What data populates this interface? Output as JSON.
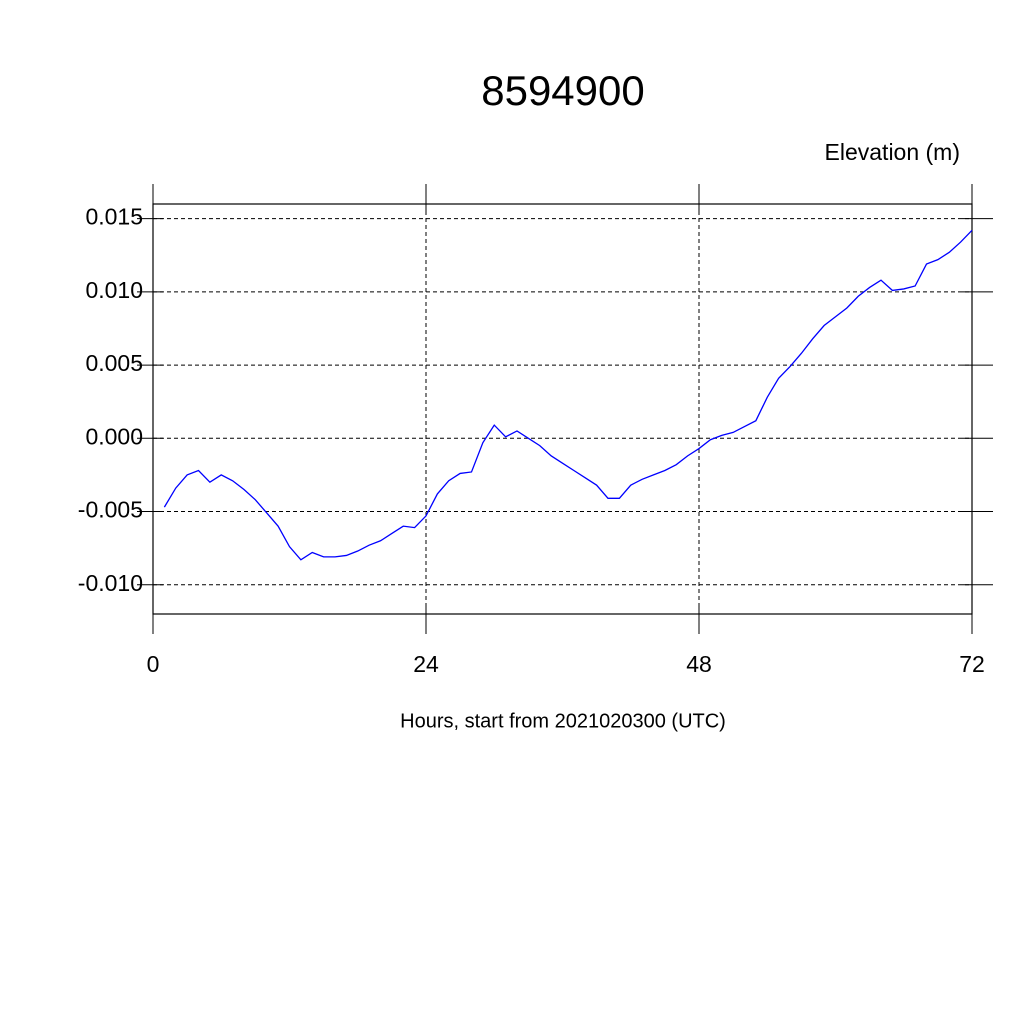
{
  "chart_data": {
    "type": "line",
    "title": "8594900",
    "subtitle": "Elevation (m)",
    "x_label": "Hours, start from 2021020300 (UTC)",
    "x": [
      1,
      2,
      3,
      4,
      5,
      6,
      7,
      8,
      9,
      10,
      11,
      12,
      13,
      14,
      15,
      16,
      17,
      18,
      19,
      20,
      21,
      22,
      23,
      24,
      25,
      26,
      27,
      28,
      29,
      30,
      31,
      32,
      33,
      34,
      35,
      36,
      37,
      38,
      39,
      40,
      41,
      42,
      43,
      44,
      45,
      46,
      47,
      48,
      49,
      50,
      51,
      52,
      53,
      54,
      55,
      56,
      57,
      58,
      59,
      60,
      61,
      62,
      63,
      64,
      65,
      66,
      67,
      68,
      69,
      70,
      71,
      72
    ],
    "series": [
      {
        "color": "#0000ff",
        "values": [
          -0.0047,
          -0.0034,
          -0.0025,
          -0.0022,
          -0.003,
          -0.0025,
          -0.0029,
          -0.0035,
          -0.0042,
          -0.0051,
          -0.006,
          -0.0074,
          -0.0083,
          -0.0078,
          -0.0081,
          -0.0081,
          -0.008,
          -0.0077,
          -0.0073,
          -0.007,
          -0.0065,
          -0.006,
          -0.0061,
          -0.0053,
          -0.0038,
          -0.0029,
          -0.0024,
          -0.0023,
          -0.0003,
          0.0009,
          0.0001,
          0.0005,
          0.0,
          -0.0005,
          -0.0012,
          -0.0017,
          -0.0022,
          -0.0027,
          -0.0032,
          -0.0041,
          -0.0041,
          -0.0032,
          -0.0028,
          -0.0025,
          -0.0022,
          -0.0018,
          -0.0012,
          -0.0007,
          -0.0001,
          0.0002,
          0.0004,
          0.0008,
          0.0012,
          0.0028,
          0.0041,
          0.0049,
          0.0058,
          0.0068,
          0.0077,
          0.0083,
          0.0089,
          0.0097,
          0.0103,
          0.0108,
          0.0101,
          0.0102,
          0.0104,
          0.0119,
          0.0122,
          0.0127,
          0.0134,
          0.0142
        ]
      }
    ],
    "xlim": [
      0,
      72
    ],
    "xticks": [
      0,
      24,
      48,
      72
    ],
    "ylim": [
      -0.012,
      0.016
    ],
    "yticks": [
      {
        "value": -0.01,
        "label": "-0.010"
      },
      -0.005,
      {
        "value": 0,
        "label": "0.000"
      },
      0.005,
      {
        "value": 0.01,
        "label": "0.010"
      },
      0.015
    ],
    "grid": true
  }
}
